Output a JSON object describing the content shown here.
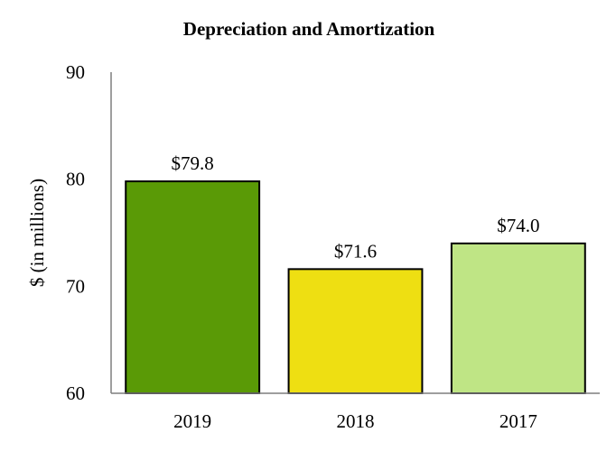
{
  "chart_data": {
    "type": "bar",
    "title": "Depreciation and Amortization",
    "xlabel": "",
    "ylabel": "$ (in millions)",
    "categories": [
      "2019",
      "2018",
      "2017"
    ],
    "values": [
      79.8,
      71.6,
      74.0
    ],
    "data_labels": [
      "$79.8",
      "$71.6",
      "$74.0"
    ],
    "colors": [
      "#5a9a06",
      "#eedf12",
      "#bfe585"
    ],
    "ylim": [
      60,
      90
    ],
    "yticks": [
      60,
      70,
      80,
      90
    ],
    "ytick_labels": [
      "60",
      "70",
      "80",
      "90"
    ],
    "grid": false,
    "legend": "none"
  }
}
